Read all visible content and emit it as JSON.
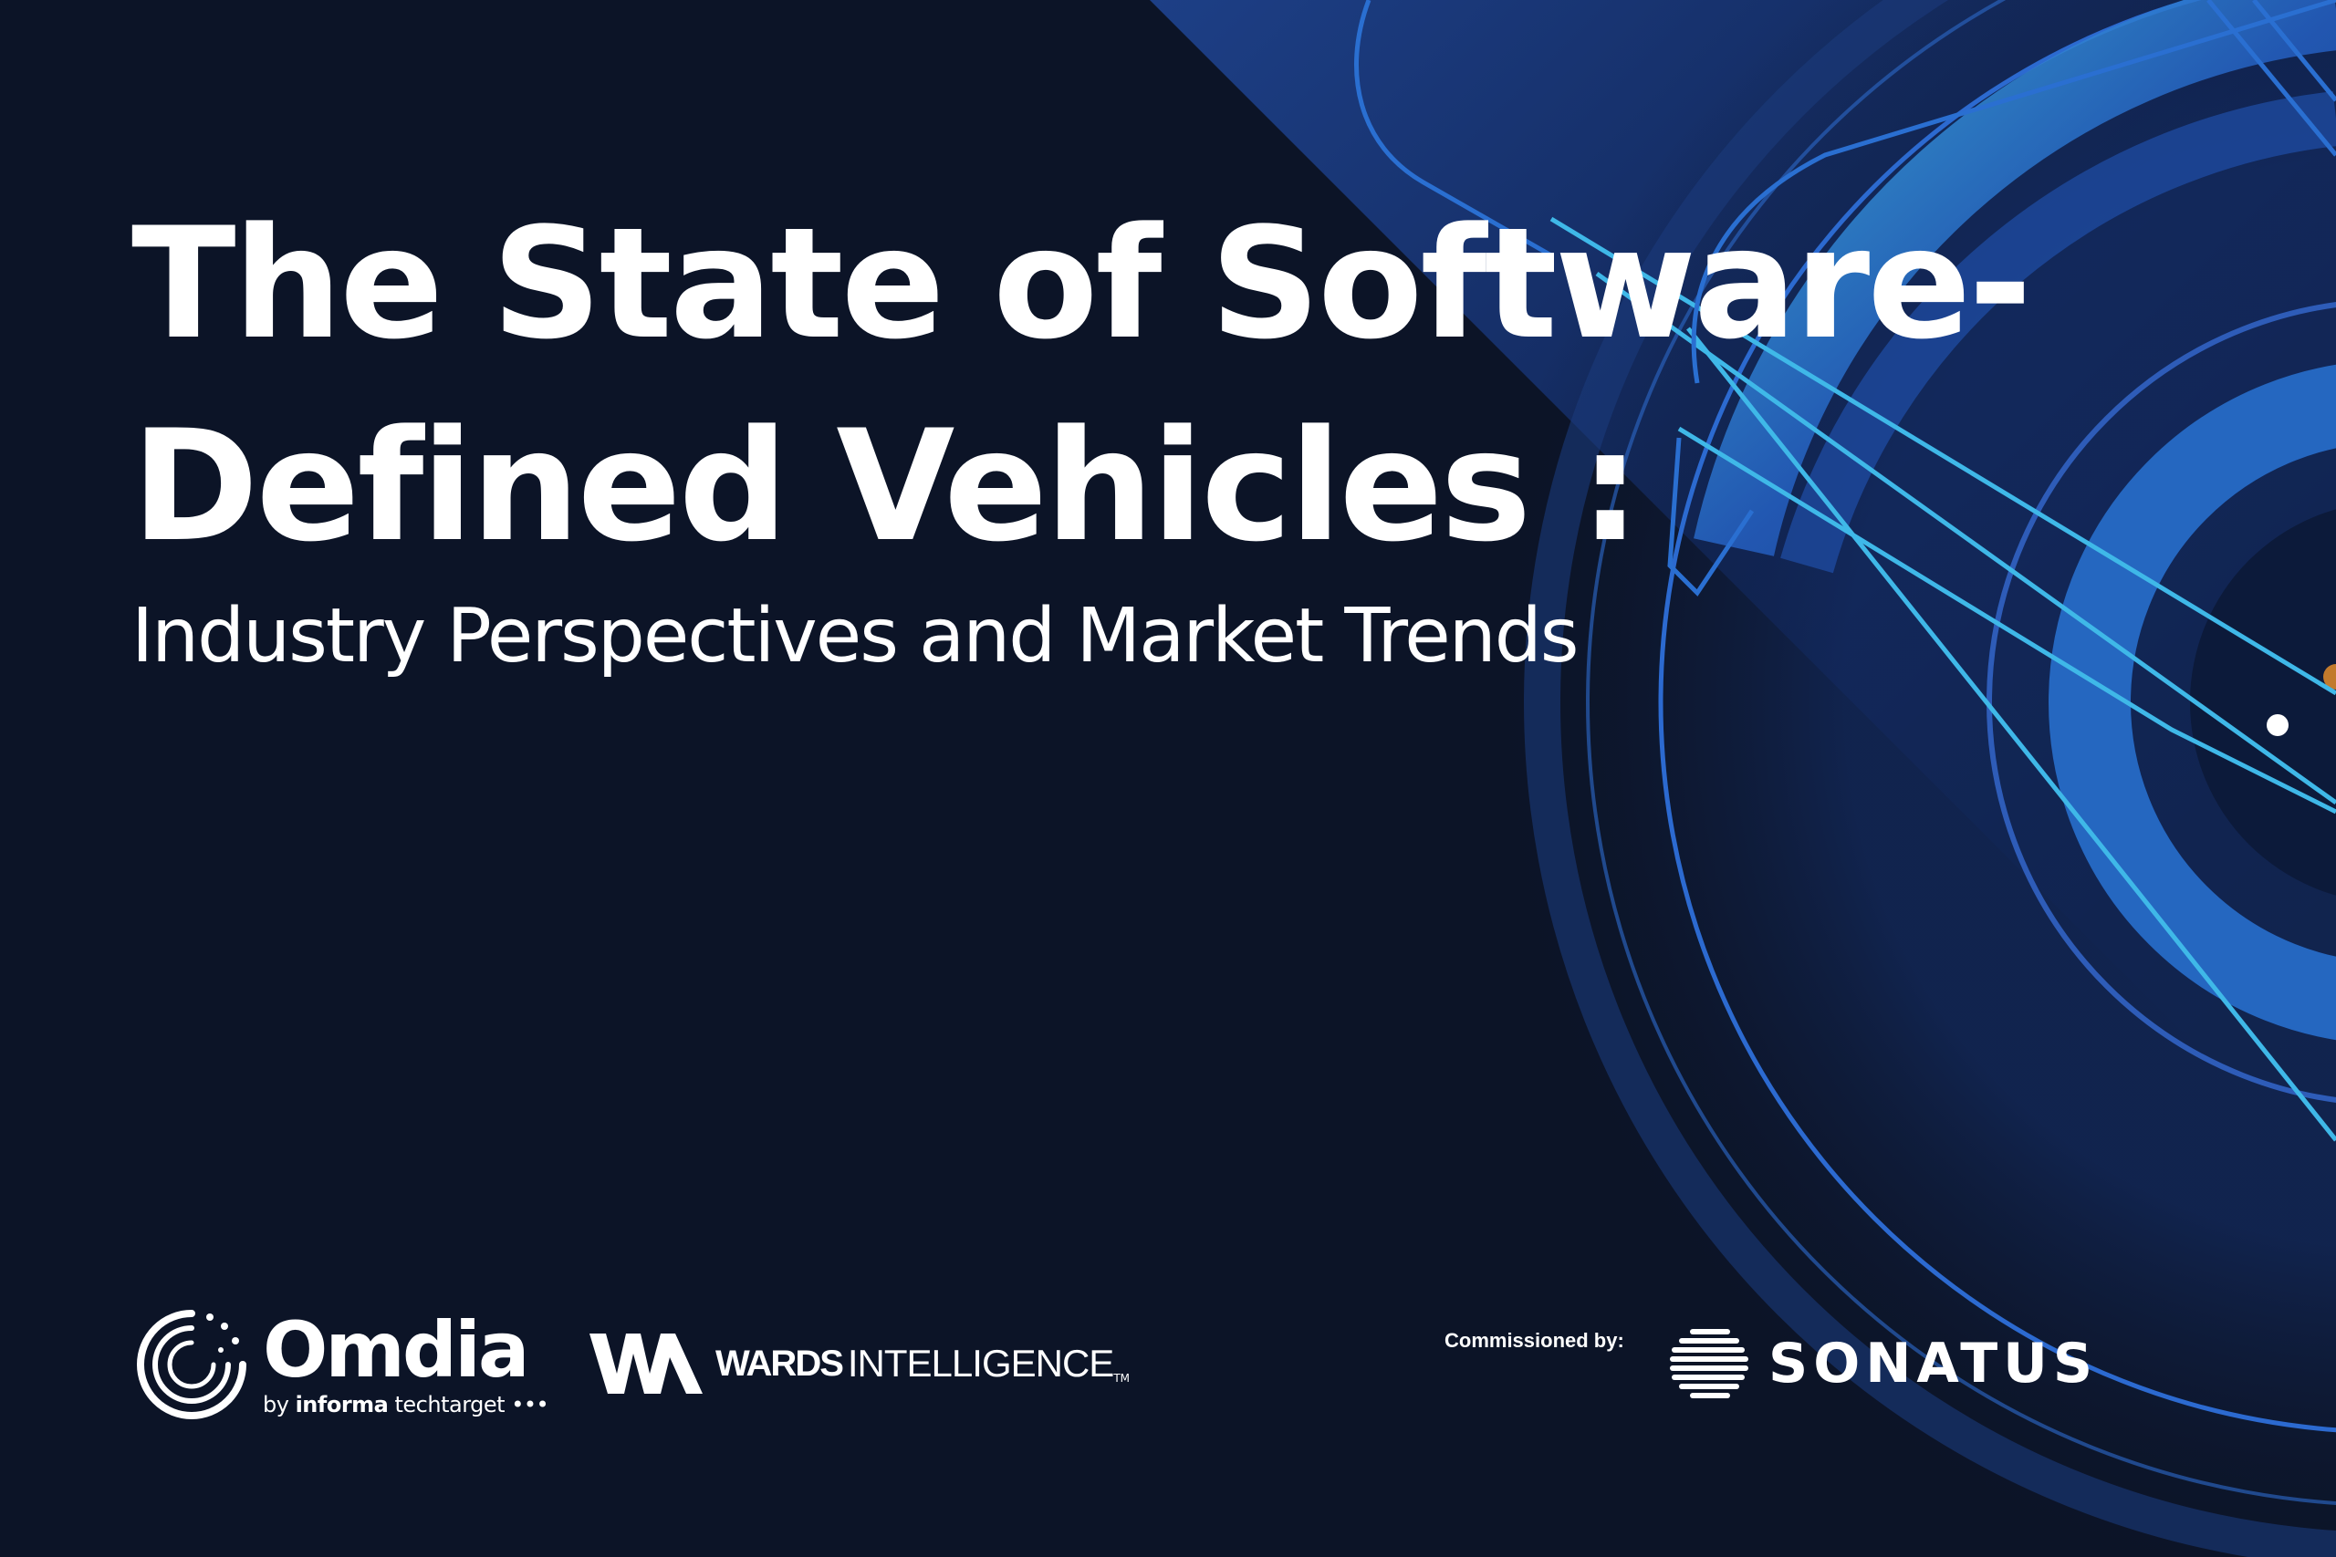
{
  "document": {
    "title_line1": "The State of Software-",
    "title_line2": "Defined Vehicles :",
    "subtitle": "Industry Perspectives and Market Trends"
  },
  "footer": {
    "omdia": {
      "name": "Omdia",
      "by": "by",
      "parent": "informa",
      "parent2": "techtarget"
    },
    "wards": {
      "bold": "WARDS",
      "light": "INTELLIGENCE",
      "tm": "TM"
    },
    "commissioned_label": "Commissioned by:",
    "sonatus": {
      "name": "SONATUS"
    }
  },
  "colors": {
    "background": "#0c1427",
    "accent_blue": "#2a6fd1",
    "accent_cyan": "#3fb8e8",
    "accent_orange": "#c27a2c"
  }
}
